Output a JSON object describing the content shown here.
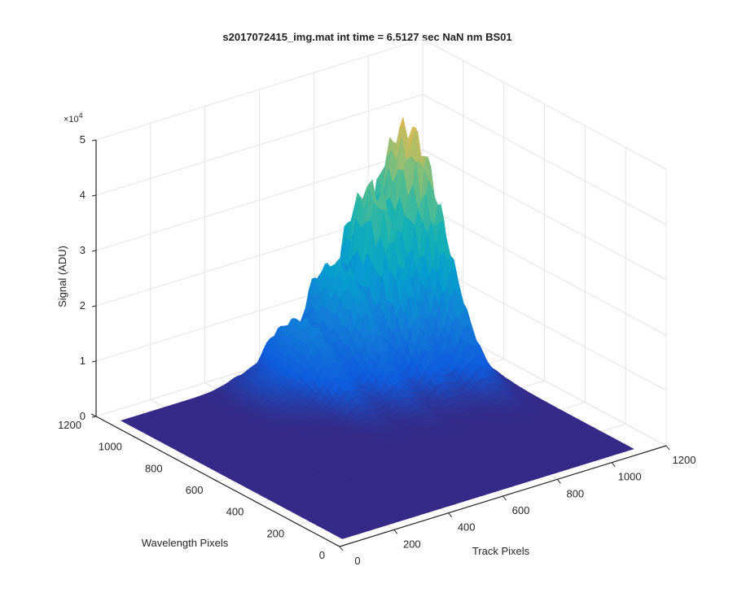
{
  "chart_data": {
    "type": "surface",
    "title": "s2017072415_img.mat int time = 6.5127 sec  NaN nm BS01",
    "xlabel": "Track Pixels",
    "ylabel": "Wavelength Pixels",
    "zlabel": "Signal (ADU)",
    "z_multiplier": "×10",
    "z_multiplier_exp": "4",
    "xlim": [
      0,
      1200
    ],
    "ylim": [
      0,
      1200
    ],
    "zlim": [
      0,
      50000
    ],
    "xticks": [
      0,
      200,
      400,
      600,
      800,
      1000,
      1200
    ],
    "yticks": [
      0,
      200,
      400,
      600,
      800,
      1000,
      1200
    ],
    "zticks": [
      0,
      1,
      2,
      3,
      4,
      5
    ],
    "xtick_labels": [
      "0",
      "200",
      "400",
      "600",
      "800",
      "1000",
      "1200"
    ],
    "ytick_labels": [
      "0",
      "200",
      "400",
      "600",
      "800",
      "1000",
      "1200"
    ],
    "ztick_labels": [
      "0",
      "1",
      "2",
      "3",
      "4",
      "5"
    ],
    "grid": true,
    "colormap": "parula",
    "surface_extent": {
      "x": [
        40,
        1110
      ],
      "y": [
        40,
        1130
      ]
    },
    "peaks": [
      {
        "x": 1000,
        "y": 1000,
        "height": 43000,
        "sx": 70,
        "sy": 240
      },
      {
        "x": 870,
        "y": 1000,
        "height": 32000,
        "sx": 45,
        "sy": 220
      },
      {
        "x": 750,
        "y": 1000,
        "height": 21000,
        "sx": 60,
        "sy": 230
      },
      {
        "x": 610,
        "y": 980,
        "height": 12000,
        "sx": 60,
        "sy": 210
      },
      {
        "x": 500,
        "y": 1000,
        "height": 3500,
        "sx": 90,
        "sy": 160
      }
    ]
  }
}
